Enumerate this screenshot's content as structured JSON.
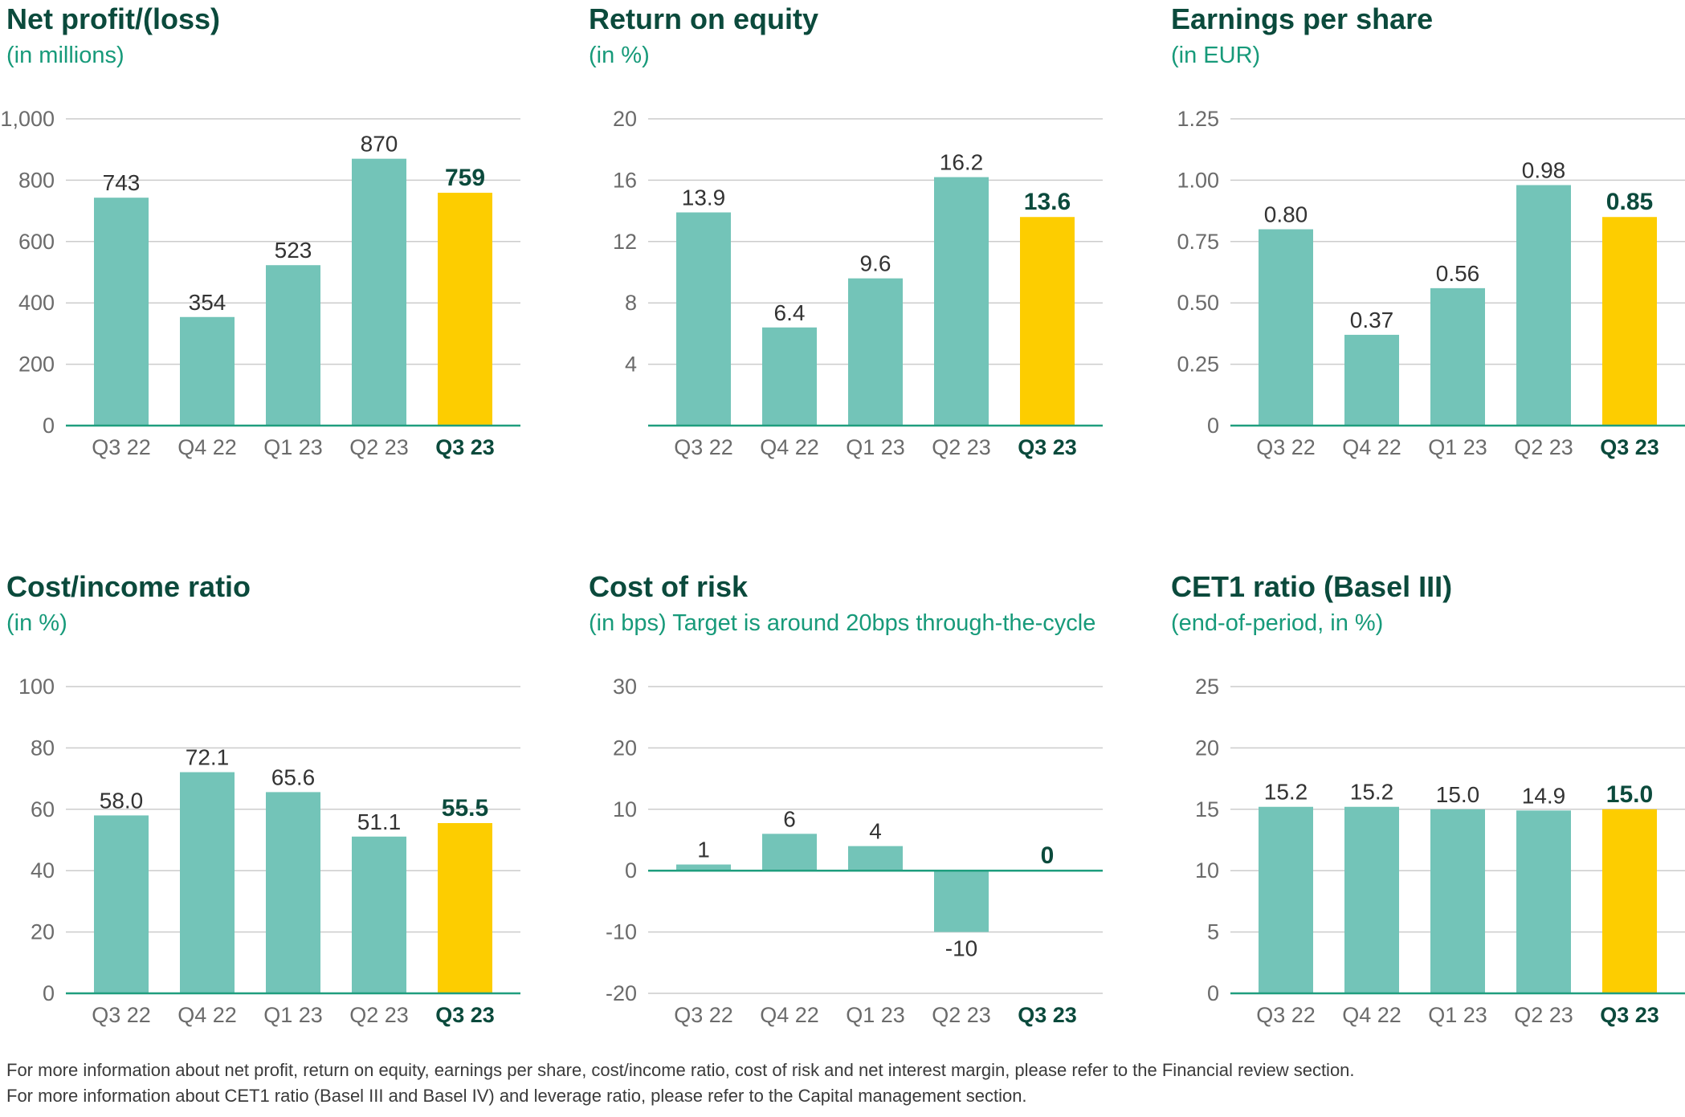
{
  "colors": {
    "title": "#0b4a3c",
    "subtitle": "#179a7a",
    "bar": "#73c4b8",
    "highlight_bar": "#fdcd00",
    "axis_line": "#1f9e7e",
    "grid": "#cccccc",
    "tick_text": "#6b6b6b",
    "label_text": "#333333",
    "highlight_text": "#0b4a3c"
  },
  "chart_data": [
    {
      "type": "bar",
      "title": "Net profit/(loss)",
      "subtitle": "(in millions)",
      "categories": [
        "Q3 22",
        "Q4 22",
        "Q1 23",
        "Q2 23",
        "Q3 23"
      ],
      "values": [
        743,
        354,
        523,
        870,
        759
      ],
      "value_labels": [
        "743",
        "354",
        "523",
        "870",
        "759"
      ],
      "highlight_index": 4,
      "ylim": [
        0,
        1000
      ],
      "yticks": [
        0,
        200,
        400,
        600,
        800,
        1000
      ],
      "ytick_labels": [
        "0",
        "200",
        "400",
        "600",
        "800",
        "1,000"
      ],
      "baseline": 0
    },
    {
      "type": "bar",
      "title": "Return on equity",
      "subtitle": "(in %)",
      "categories": [
        "Q3 22",
        "Q4 22",
        "Q1 23",
        "Q2 23",
        "Q3 23"
      ],
      "values": [
        13.9,
        6.4,
        9.6,
        16.2,
        13.6
      ],
      "value_labels": [
        "13.9",
        "6.4",
        "9.6",
        "16.2",
        "13.6"
      ],
      "highlight_index": 4,
      "ylim": [
        0,
        20
      ],
      "yticks": [
        4,
        8,
        12,
        16,
        20
      ],
      "ytick_labels": [
        "4",
        "8",
        "12",
        "16",
        "20"
      ],
      "baseline": 0
    },
    {
      "type": "bar",
      "title": "Earnings per share",
      "subtitle": "(in EUR)",
      "categories": [
        "Q3 22",
        "Q4 22",
        "Q1 23",
        "Q2 23",
        "Q3 23"
      ],
      "values": [
        0.8,
        0.37,
        0.56,
        0.98,
        0.85
      ],
      "value_labels": [
        "0.80",
        "0.37",
        "0.56",
        "0.98",
        "0.85"
      ],
      "highlight_index": 4,
      "ylim": [
        0,
        1.25
      ],
      "yticks": [
        0,
        0.25,
        0.5,
        0.75,
        1.0,
        1.25
      ],
      "ytick_labels": [
        "0",
        "0.25",
        "0.50",
        "0.75",
        "1.00",
        "1.25"
      ],
      "baseline": 0
    },
    {
      "type": "bar",
      "title": "Cost/income ratio",
      "subtitle": "(in %)",
      "categories": [
        "Q3 22",
        "Q4 22",
        "Q1 23",
        "Q2 23",
        "Q3 23"
      ],
      "values": [
        58.0,
        72.1,
        65.6,
        51.1,
        55.5
      ],
      "value_labels": [
        "58.0",
        "72.1",
        "65.6",
        "51.1",
        "55.5"
      ],
      "highlight_index": 4,
      "ylim": [
        0,
        100
      ],
      "yticks": [
        0,
        20,
        40,
        60,
        80,
        100
      ],
      "ytick_labels": [
        "0",
        "20",
        "40",
        "60",
        "80",
        "100"
      ],
      "baseline": 0
    },
    {
      "type": "bar",
      "title": "Cost of risk",
      "subtitle": "(in bps) Target is around 20bps through-the-cycle",
      "categories": [
        "Q3 22",
        "Q4 22",
        "Q1 23",
        "Q2 23",
        "Q3 23"
      ],
      "values": [
        1,
        6,
        4,
        -10,
        0
      ],
      "value_labels": [
        "1",
        "6",
        "4",
        "-10",
        "0"
      ],
      "highlight_index": 4,
      "ylim": [
        -20,
        30
      ],
      "yticks": [
        -20,
        -10,
        0,
        10,
        20,
        30
      ],
      "ytick_labels": [
        "-20",
        "-10",
        "0",
        "10",
        "20",
        "30"
      ],
      "baseline": 0
    },
    {
      "type": "bar",
      "title": "CET1 ratio (Basel III)",
      "subtitle": "(end-of-period, in %)",
      "categories": [
        "Q3 22",
        "Q4 22",
        "Q1 23",
        "Q2 23",
        "Q3 23"
      ],
      "values": [
        15.2,
        15.2,
        15.0,
        14.9,
        15.0
      ],
      "value_labels": [
        "15.2",
        "15.2",
        "15.0",
        "14.9",
        "15.0"
      ],
      "highlight_index": 4,
      "ylim": [
        0,
        25
      ],
      "yticks": [
        0,
        5,
        10,
        15,
        20,
        25
      ],
      "ytick_labels": [
        "0",
        "5",
        "10",
        "15",
        "20",
        "25"
      ],
      "baseline": 0
    }
  ],
  "footnotes": [
    "For more information about net profit, return on equity, earnings per share, cost/income ratio, cost of risk and net interest margin, please refer to the Financial review section.",
    "For more information about CET1 ratio (Basel III and Basel IV) and leverage ratio, please refer to the Capital management section."
  ]
}
